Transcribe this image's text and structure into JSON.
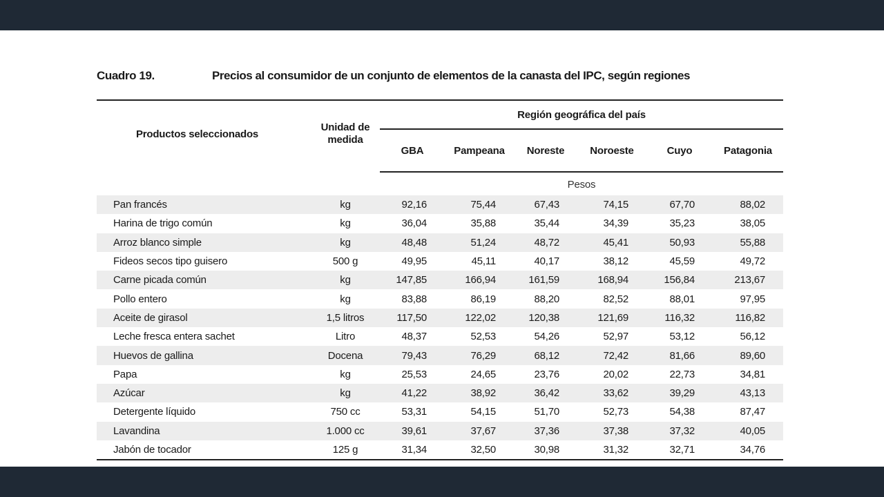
{
  "caption": {
    "number": "Cuadro 19.",
    "title": "Precios al consumidor de un conjunto de elementos de la canasta del IPC, según regiones"
  },
  "table": {
    "header": {
      "product": "Productos seleccionados",
      "unit_line1": "Unidad de",
      "unit_line2": "medida",
      "region_group": "Región geográfica del país",
      "regions": [
        "GBA",
        "Pampeana",
        "Noreste",
        "Noroeste",
        "Cuyo",
        "Patagonia"
      ]
    },
    "units_label": "Pesos",
    "rows": [
      {
        "product": "Pan francés",
        "unit": "kg",
        "values": [
          "92,16",
          "75,44",
          "67,43",
          "74,15",
          "67,70",
          "88,02"
        ]
      },
      {
        "product": "Harina de trigo común",
        "unit": "kg",
        "values": [
          "36,04",
          "35,88",
          "35,44",
          "34,39",
          "35,23",
          "38,05"
        ]
      },
      {
        "product": "Arroz blanco simple",
        "unit": "kg",
        "values": [
          "48,48",
          "51,24",
          "48,72",
          "45,41",
          "50,93",
          "55,88"
        ]
      },
      {
        "product": "Fideos secos tipo guisero",
        "unit": "500 g",
        "values": [
          "49,95",
          "45,11",
          "40,17",
          "38,12",
          "45,59",
          "49,72"
        ]
      },
      {
        "product": "Carne picada común",
        "unit": "kg",
        "values": [
          "147,85",
          "166,94",
          "161,59",
          "168,94",
          "156,84",
          "213,67"
        ]
      },
      {
        "product": "Pollo entero",
        "unit": "kg",
        "values": [
          "83,88",
          "86,19",
          "88,20",
          "82,52",
          "88,01",
          "97,95"
        ]
      },
      {
        "product": "Aceite de girasol",
        "unit": "1,5 litros",
        "values": [
          "117,50",
          "122,02",
          "120,38",
          "121,69",
          "116,32",
          "116,82"
        ]
      },
      {
        "product": "Leche fresca entera sachet",
        "unit": "Litro",
        "values": [
          "48,37",
          "52,53",
          "54,26",
          "52,97",
          "53,12",
          "56,12"
        ]
      },
      {
        "product": "Huevos de gallina",
        "unit": "Docena",
        "values": [
          "79,43",
          "76,29",
          "68,12",
          "72,42",
          "81,66",
          "89,60"
        ]
      },
      {
        "product": "Papa",
        "unit": "kg",
        "values": [
          "25,53",
          "24,65",
          "23,76",
          "20,02",
          "22,73",
          "34,81"
        ]
      },
      {
        "product": "Azúcar",
        "unit": "kg",
        "values": [
          "41,22",
          "38,92",
          "36,42",
          "33,62",
          "39,29",
          "43,13"
        ]
      },
      {
        "product": "Detergente líquido",
        "unit": "750 cc",
        "values": [
          "53,31",
          "54,15",
          "51,70",
          "52,73",
          "54,38",
          "87,47"
        ]
      },
      {
        "product": "Lavandina",
        "unit": "1.000 cc",
        "values": [
          "39,61",
          "37,67",
          "37,36",
          "37,38",
          "37,32",
          "40,05"
        ]
      },
      {
        "product": "Jabón de tocador",
        "unit": "125 g",
        "values": [
          "31,34",
          "32,50",
          "30,98",
          "31,32",
          "32,71",
          "34,76"
        ]
      }
    ]
  }
}
